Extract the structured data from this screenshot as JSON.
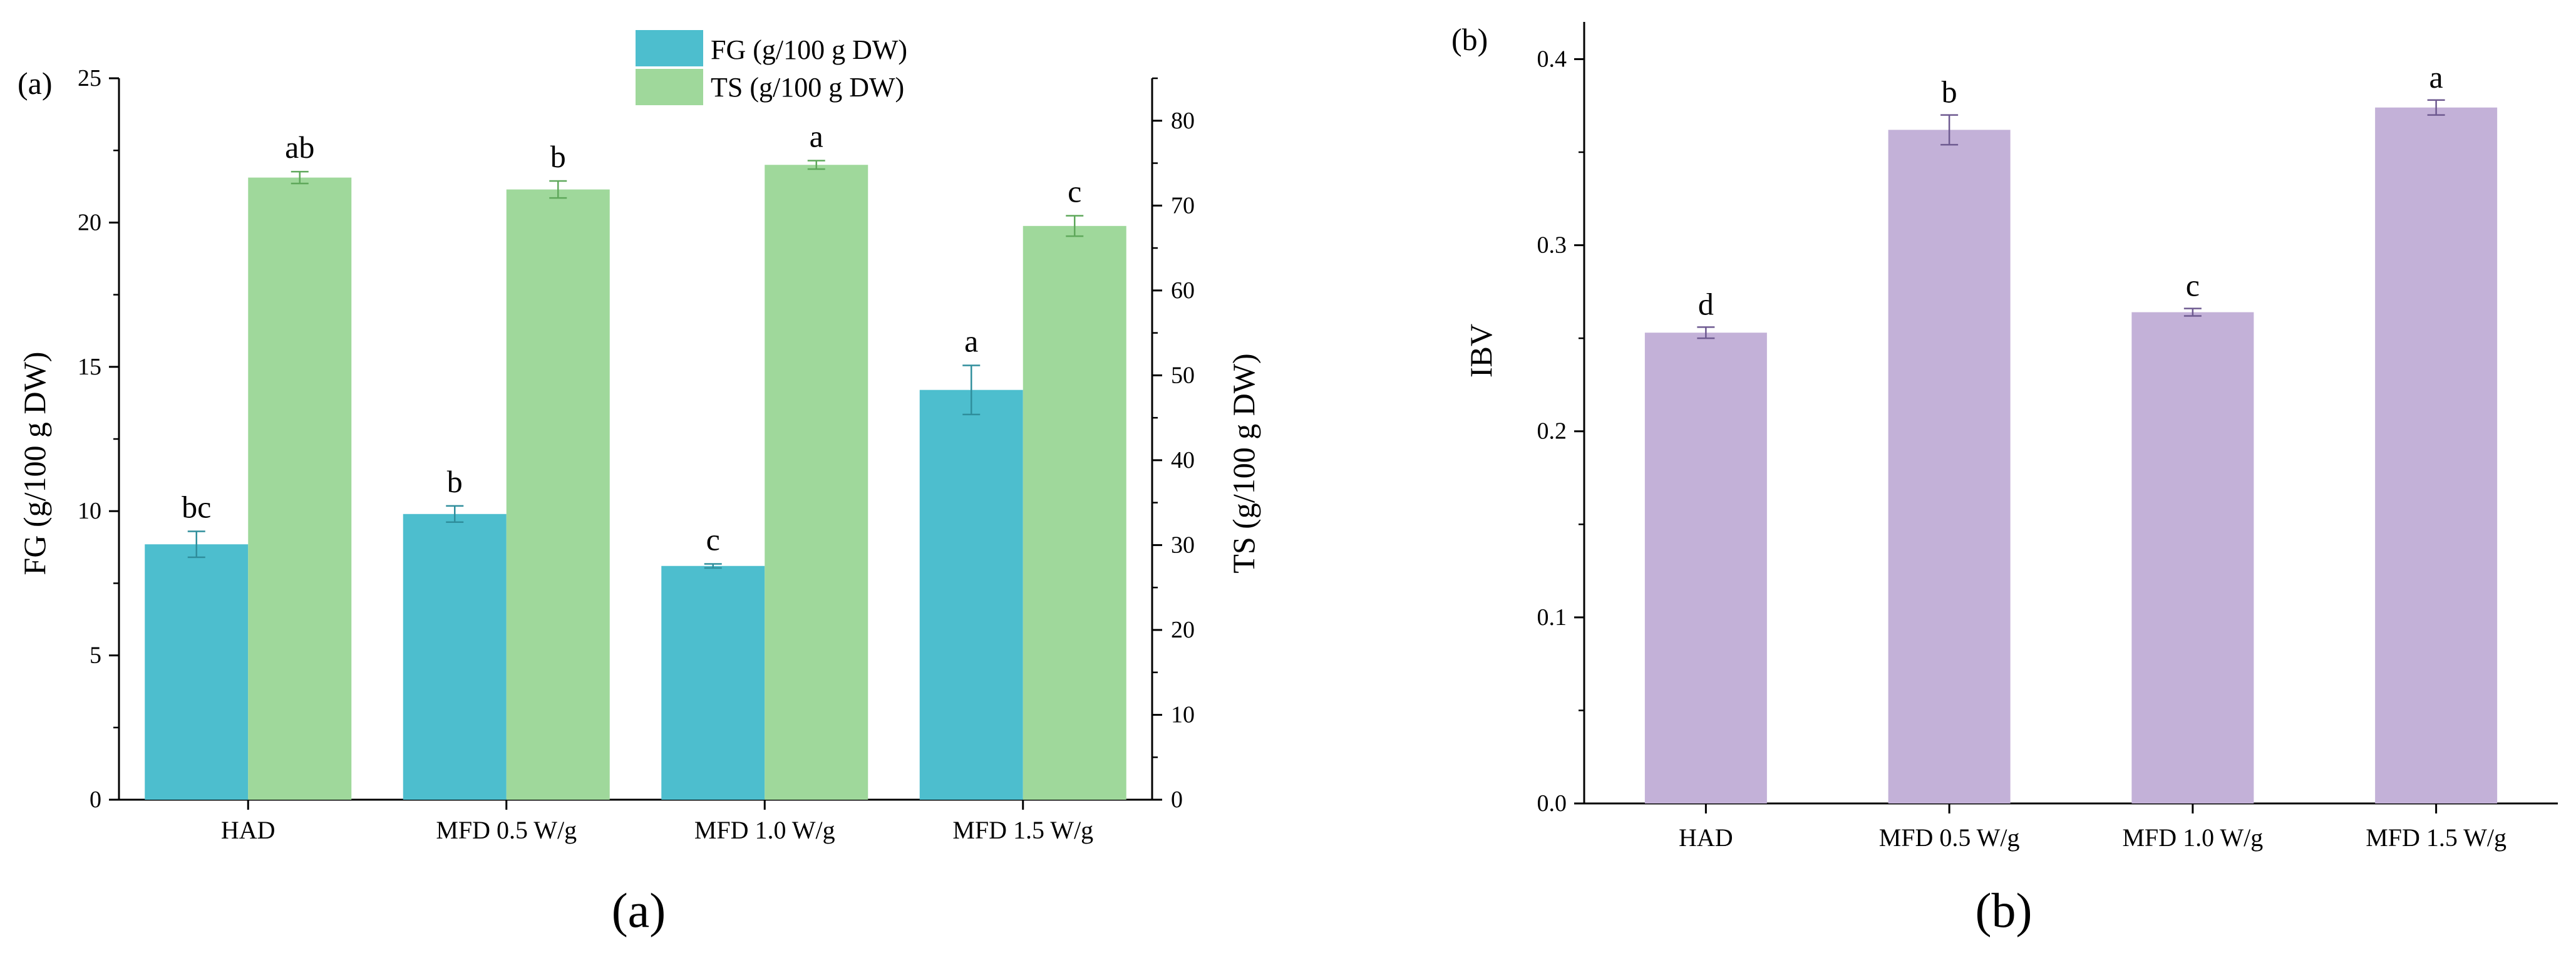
{
  "chart_data": [
    {
      "type": "bar",
      "panel_label": "(a)",
      "caption": "(a)",
      "categories": [
        "HAD",
        "MFD 0.5 W/g",
        "MFD 1.0 W/g",
        "MFD 1.5 W/g"
      ],
      "series": [
        {
          "name": "FG (g/100 g DW)",
          "axis": "left",
          "color": "#4DBECE",
          "values": [
            8.85,
            9.9,
            8.1,
            14.2
          ],
          "errors": [
            0.45,
            0.28,
            0.07,
            0.85
          ],
          "labels": [
            "bc",
            "b",
            "c",
            "a"
          ]
        },
        {
          "name": "TS (g/100 g DW)",
          "axis": "right",
          "color": "#9FD89B",
          "values": [
            73.3,
            71.9,
            74.8,
            67.6
          ],
          "errors": [
            0.7,
            1.0,
            0.5,
            1.2
          ],
          "labels": [
            "ab",
            "b",
            "a",
            "c"
          ]
        }
      ],
      "ylabel": "FG (g/100 g DW)",
      "ylim": [
        0,
        25
      ],
      "yticks": [
        "0",
        "5",
        "10",
        "15",
        "20",
        "25"
      ],
      "y2label": "TS (g/100 g DW)",
      "y2lim": [
        0,
        85
      ],
      "y2ticks": [
        "0",
        "10",
        "20",
        "30",
        "40",
        "50",
        "60",
        "70",
        "80"
      ],
      "legend": "top-center"
    },
    {
      "type": "bar",
      "panel_label": "(b)",
      "caption": "(b)",
      "categories": [
        "HAD",
        "MFD 0.5 W/g",
        "MFD 1.0 W/g",
        "MFD 1.5 W/g"
      ],
      "series": [
        {
          "name": "IBV",
          "color": "#C3B1D8",
          "values": [
            0.253,
            0.362,
            0.264,
            0.374
          ],
          "errors": [
            0.003,
            0.008,
            0.002,
            0.004
          ],
          "labels": [
            "d",
            "b",
            "c",
            "a"
          ]
        }
      ],
      "ylabel": "IBV",
      "ylim": [
        0,
        0.42
      ],
      "yticks": [
        "0.0",
        "0.1",
        "0.2",
        "0.3",
        "0.4"
      ]
    }
  ]
}
